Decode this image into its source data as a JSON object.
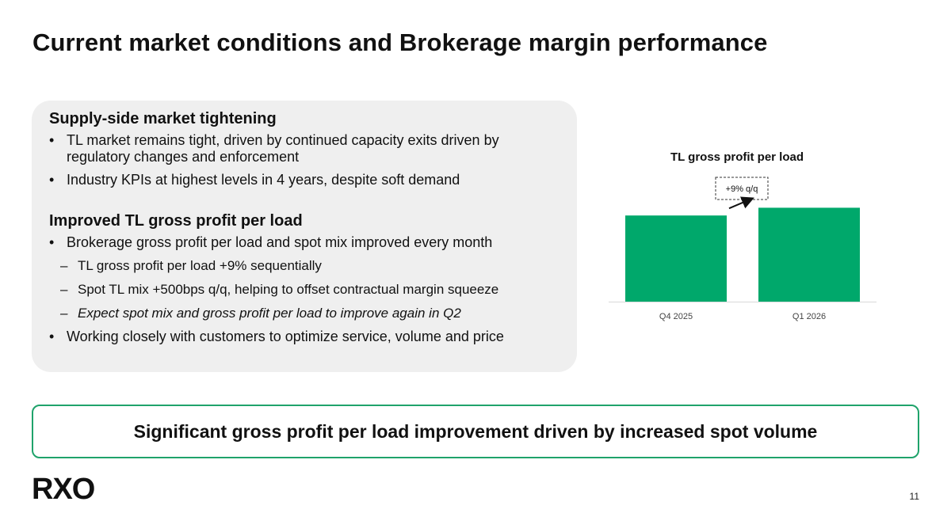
{
  "title": "Current market conditions and Brokerage margin performance",
  "panel": {
    "section1": {
      "heading": "Supply-side market tightening",
      "bullets": [
        "TL market remains tight, driven by continued capacity exits driven by regulatory changes and enforcement",
        "Industry KPIs at highest levels in 4 years, despite soft demand"
      ]
    },
    "section2": {
      "heading": "Improved TL gross profit per load",
      "bullet1": "Brokerage gross profit per load and spot mix improved every month",
      "subbullets": [
        "TL gross profit per load +9% sequentially",
        "Spot TL mix +500bps q/q, helping to offset contractual margin squeeze",
        "Expect spot mix and gross profit per load to improve again in Q2"
      ],
      "bullet2": "Working closely with customers to optimize service, volume and price"
    }
  },
  "chart_data": {
    "type": "bar",
    "title": "TL gross profit per load",
    "categories": [
      "Q4 2025",
      "Q1 2026"
    ],
    "values": [
      100,
      109
    ],
    "annotation": "+9% q/q",
    "bar_color": "#00a86b",
    "ylim": [
      0,
      125
    ],
    "grid": false,
    "legend": "none"
  },
  "callout": "Significant gross profit per load improvement driven by increased spot volume",
  "logo_text": "RXO",
  "page_number": "11"
}
